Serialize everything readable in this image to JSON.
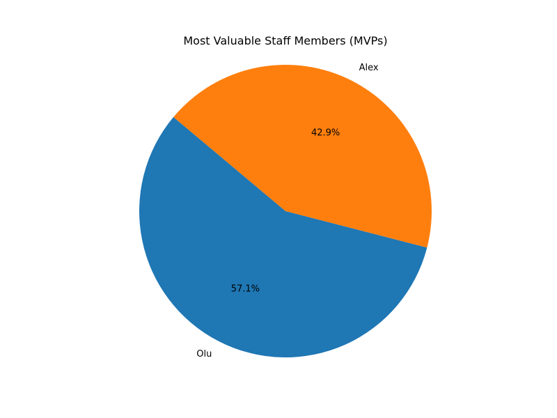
{
  "chart_data": {
    "type": "pie",
    "title": "Most Valuable Staff Members (MVPs)",
    "labels": [
      "Olu",
      "Alex"
    ],
    "values": [
      57.1,
      42.9
    ],
    "percent_labels": [
      "57.1%",
      "42.9%"
    ],
    "colors": [
      "#1f77b4",
      "#ff7f0e"
    ],
    "start_angle_deg": 140,
    "direction": "counterclockwise"
  }
}
